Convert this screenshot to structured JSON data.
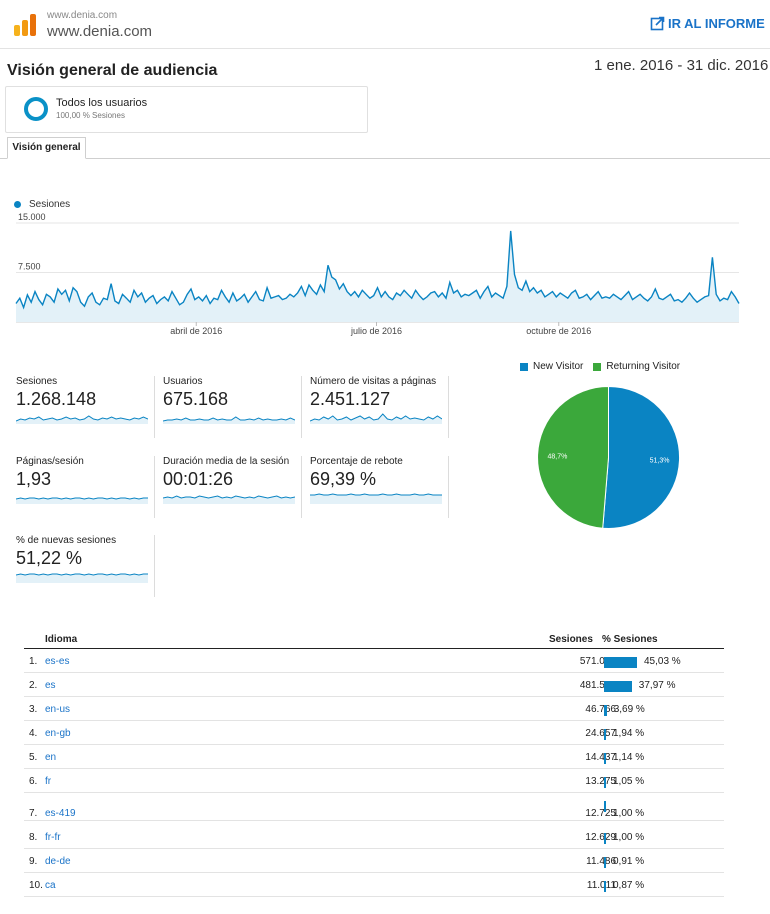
{
  "header": {
    "site_small": "www.denia.com",
    "site_name": "www.denia.com",
    "open_report_label": "IR AL INFORME",
    "icons": {
      "logo": "analytics-logo",
      "open": "external-link-icon"
    }
  },
  "page": {
    "title": "Visión general de audiencia",
    "date_range": "1 ene. 2016 - 31 dic. 2016"
  },
  "segment": {
    "name": "Todos los usuarios",
    "subtitle": "100,00 % Sesiones"
  },
  "tabs": [
    {
      "label": "Visión general",
      "active": true
    }
  ],
  "colors": {
    "accent": "#0a84c3",
    "link": "#1a73c8",
    "new_visitor": "#0a84c3",
    "returning_visitor": "#3ba83b"
  },
  "chart_data": [
    {
      "type": "area",
      "legend": [
        "Sesiones"
      ],
      "y_ticks": [
        "15.000",
        "7.500"
      ],
      "ylim": [
        0,
        15000
      ],
      "x_ticks": [
        "abril de 2016",
        "julio de 2016",
        "octubre de 2016"
      ],
      "grid": true,
      "series": [
        {
          "name": "Sesiones",
          "values": [
            2800,
            3600,
            2200,
            4100,
            3000,
            4600,
            3400,
            2600,
            4200,
            3800,
            3000,
            5000,
            4200,
            4800,
            3200,
            5200,
            4600,
            3000,
            2400,
            3800,
            4400,
            3000,
            2600,
            3600,
            3400,
            5800,
            3200,
            2800,
            4200,
            3600,
            3000,
            4800,
            3800,
            4400,
            3000,
            3600,
            4000,
            2800,
            3400,
            3800,
            3200,
            4600,
            3600,
            2600,
            3000,
            4200,
            5000,
            3400,
            3800,
            3200,
            4000,
            2800,
            3600,
            3400,
            4800,
            3800,
            3000,
            4400,
            3200,
            3600,
            4200,
            3000,
            3800,
            4600,
            3400,
            3200,
            5200,
            3600,
            3800,
            4000,
            3400,
            3600,
            4200,
            3800,
            4400,
            5400,
            4000,
            5600,
            4800,
            4200,
            5600,
            4600,
            8600,
            6800,
            6400,
            5000,
            5800,
            4600,
            4000,
            4600,
            3800,
            4800,
            4200,
            3600,
            4000,
            5200,
            3800,
            4600,
            3800,
            3400,
            4400,
            4000,
            4800,
            4200,
            3600,
            4800,
            4000,
            3400,
            3800,
            4400,
            4600,
            3800,
            4400,
            3600,
            6000,
            4400,
            4800,
            3800,
            4200,
            4000,
            4400,
            4800,
            3600,
            4600,
            5400,
            3800,
            4400,
            4000,
            3600,
            5400,
            13800,
            7200,
            5200,
            4800,
            6200,
            4600,
            5200,
            4400,
            4800,
            3800,
            4200,
            4600,
            3800,
            4400,
            4000,
            3600,
            4400,
            4800,
            3600,
            3800,
            4200,
            3400,
            4000,
            4600,
            3600,
            3800,
            3600,
            4200,
            3800,
            3400,
            4000,
            4600,
            3400,
            3800,
            4200,
            3600,
            3200,
            3800,
            5000,
            3600,
            3400,
            3800,
            4200,
            3200,
            3400,
            3000,
            3600,
            4400,
            3600,
            3000,
            3400,
            3800,
            4000,
            9800,
            4200,
            3200,
            3600,
            3400,
            4600,
            3800,
            2800
          ]
        }
      ]
    },
    {
      "type": "pie",
      "legend": [
        "New Visitor",
        "Returning Visitor"
      ],
      "categories": [
        "New Visitor",
        "Returning Visitor"
      ],
      "values": [
        51.3,
        48.7
      ],
      "labels": [
        "51,3%",
        "48,7%"
      ],
      "legend_position": "top"
    }
  ],
  "metrics": [
    {
      "label": "Sesiones",
      "value": "1.268.148"
    },
    {
      "label": "Usuarios",
      "value": "675.168"
    },
    {
      "label": "Número de visitas a páginas",
      "value": "2.451.127"
    },
    {
      "label": "Páginas/sesión",
      "value": "1,93"
    },
    {
      "label": "Duración media de la sesión",
      "value": "00:01:26"
    },
    {
      "label": "Porcentaje de rebote",
      "value": "69,39 %"
    },
    {
      "label": "% de nuevas sesiones",
      "value": "51,22 %"
    }
  ],
  "table": {
    "headers": {
      "language": "Idioma",
      "sessions": "Sesiones",
      "pct": "% Sesiones"
    },
    "rows": [
      {
        "rank": "1.",
        "lang": "es-es",
        "sessions": "571.007",
        "pct": "45,03 %",
        "share": 45.03
      },
      {
        "rank": "2.",
        "lang": "es",
        "sessions": "481.564",
        "pct": "37,97 %",
        "share": 37.97
      },
      {
        "rank": "3.",
        "lang": "en-us",
        "sessions": "46.766",
        "pct": "3,69 %",
        "share": 3.69
      },
      {
        "rank": "4.",
        "lang": "en-gb",
        "sessions": "24.657",
        "pct": "1,94 %",
        "share": 1.94
      },
      {
        "rank": "5.",
        "lang": "en",
        "sessions": "14.437",
        "pct": "1,14 %",
        "share": 1.14
      },
      {
        "rank": "6.",
        "lang": "fr",
        "sessions": "13.275",
        "pct": "1,05 %",
        "share": 1.05
      },
      {
        "rank": "7.",
        "lang": "es-419",
        "sessions": "12.725",
        "pct": "1,00 %",
        "share": 1.0
      },
      {
        "rank": "8.",
        "lang": "fr-fr",
        "sessions": "12.629",
        "pct": "1,00 %",
        "share": 1.0
      },
      {
        "rank": "9.",
        "lang": "de-de",
        "sessions": "11.486",
        "pct": "0,91 %",
        "share": 0.91
      },
      {
        "rank": "10.",
        "lang": "ca",
        "sessions": "11.011",
        "pct": "0,87 %",
        "share": 0.87
      }
    ]
  }
}
